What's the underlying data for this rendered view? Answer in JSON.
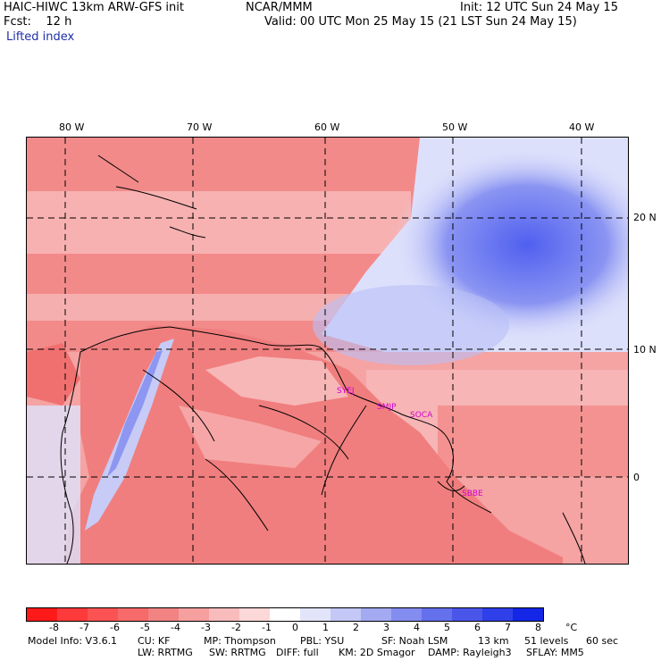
{
  "header": {
    "line1_left": "HAIC-HIWC 13km ARW-GFS init",
    "line1_mid": "NCAR/MMM",
    "line1_right": "Init: 12 UTC Sun 24 May 15",
    "line2_left": "Fcst:    12 h",
    "line2_right": "Valid: 00 UTC Mon 25 May 15 (21 LST Sun 24 May 15)",
    "field": "Lifted index"
  },
  "map": {
    "lon_labels": [
      "80 W",
      "70 W",
      "60 W",
      "50 W",
      "40 W"
    ],
    "lat_labels": [
      "20 N",
      "10 N",
      "0"
    ],
    "stations": [
      "SYEJ",
      "SMJP",
      "SOCA",
      "SBBE"
    ],
    "colors": {
      "land": "#f08080",
      "ocean": "#ffd0d0",
      "cool": "#5060f0"
    }
  },
  "colorbar": {
    "labels": [
      "-8",
      "-7",
      "-6",
      "-5",
      "-4",
      "-3",
      "-2",
      "-1",
      "0",
      "1",
      "2",
      "3",
      "4",
      "5",
      "6",
      "7",
      "8",
      "°C"
    ],
    "colors": [
      "#ff1a1a",
      "#ff3a3a",
      "#fb5353",
      "#f66a6a",
      "#f28383",
      "#f59f9f",
      "#f9bcbc",
      "#fcd8d8",
      "#ffffff",
      "#e2e4fa",
      "#c3c8f6",
      "#a3aaf2",
      "#838cef",
      "#6470ec",
      "#4a56ea",
      "#3040e8",
      "#1426e6"
    ]
  },
  "footer": {
    "l1": [
      "Model Info: V3.6.1",
      "CU: KF",
      "MP: Thompson",
      "PBL: YSU",
      "SF: Noah LSM",
      "13 km",
      "51 levels",
      "60 sec"
    ],
    "l2": [
      "LW: RRTMG",
      "SW: RRTMG",
      "DIFF: full",
      "KM: 2D Smagor",
      "DAMP: Rayleigh3",
      "SFLAY: MM5"
    ]
  }
}
